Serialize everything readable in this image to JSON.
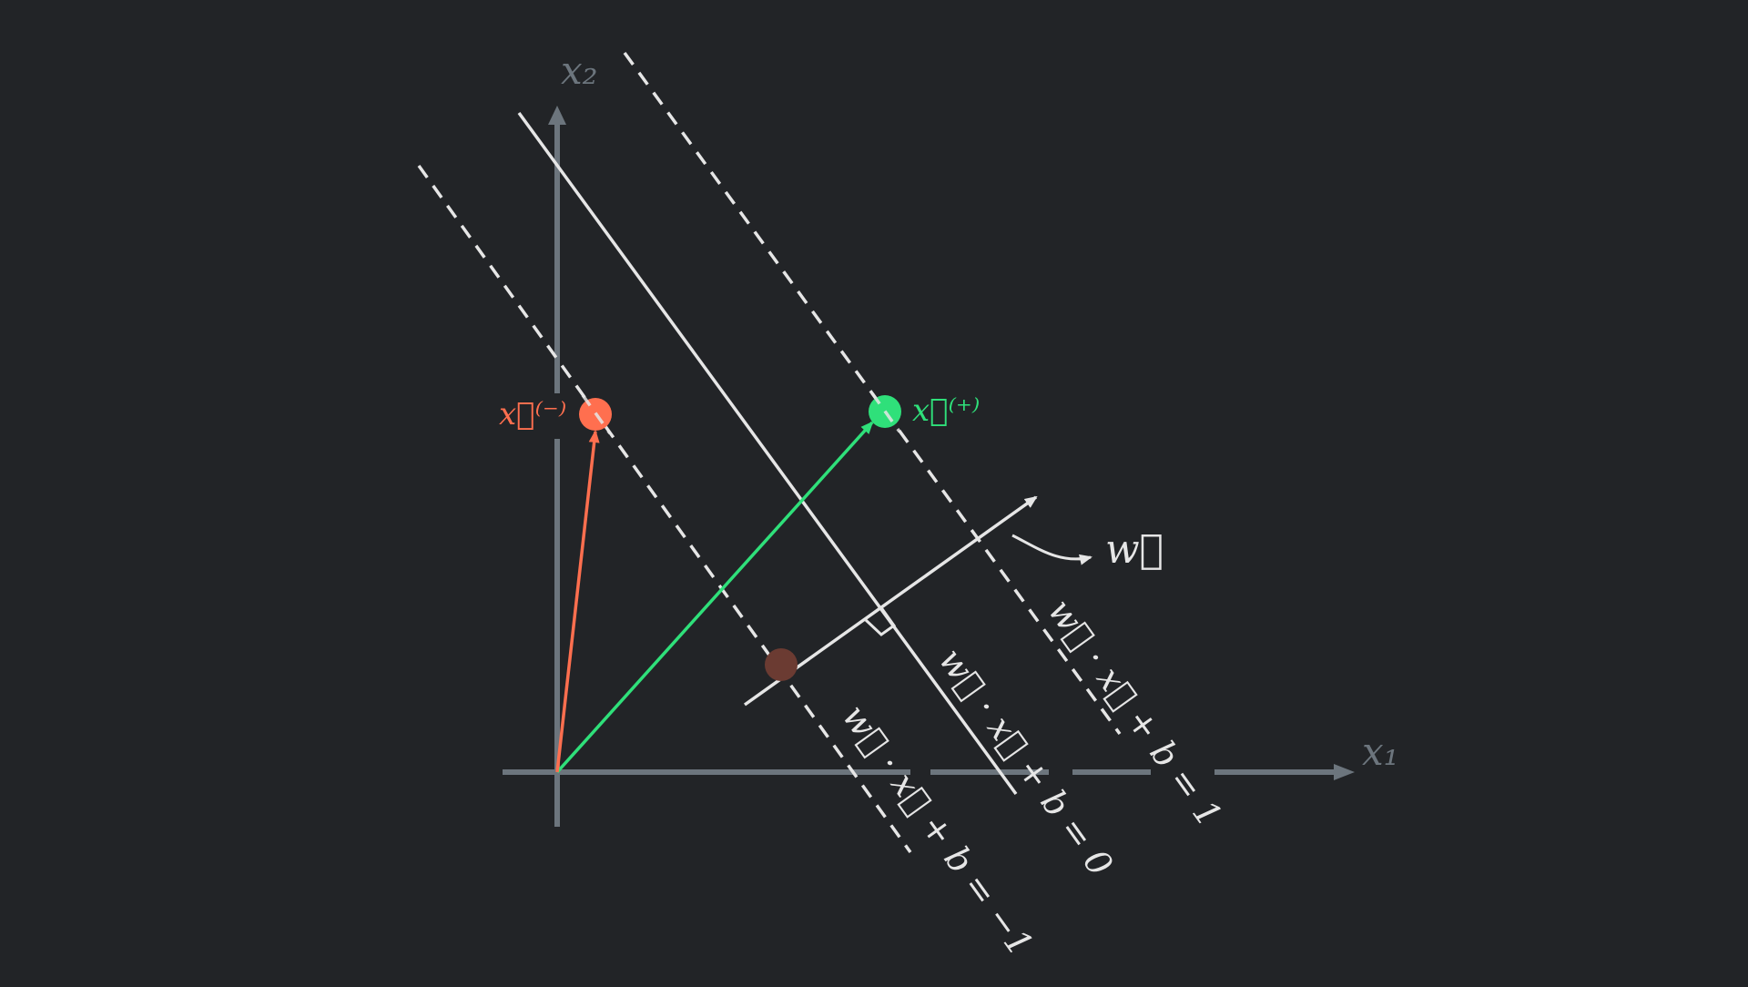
{
  "labels": {
    "axis_x": "x₁",
    "axis_y": "x₂",
    "x_neg": "x⃗⁽⁻⁾",
    "x_pos": "x⃗⁽⁺⁾",
    "w": "w⃗",
    "eq_minus1": "w⃗ · x⃗ + b = −1",
    "eq_zero": "w⃗ · x⃗ + b = 0",
    "eq_plus1": "w⃗ · x⃗ + b = 1"
  },
  "colors": {
    "background": "#222427",
    "axis": "#6c757d",
    "line": "#e6e6e6",
    "negative": "#ff6f4f",
    "positive": "#2fe07a",
    "projection": "#6b3b32"
  },
  "icons": [
    "arrow-head-icon",
    "right-angle-icon"
  ]
}
